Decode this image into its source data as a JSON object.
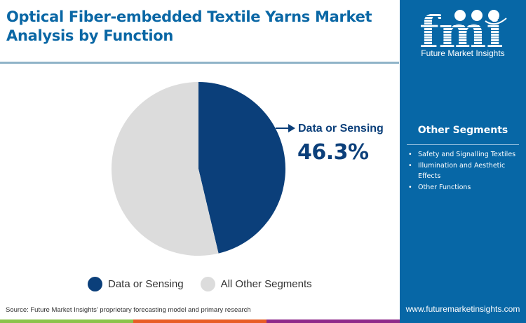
{
  "header": {
    "title": "Optical Fiber-embedded Textile Yarns Market Analysis by Function"
  },
  "callout": {
    "label": "Data or Sensing",
    "value": "46.3%"
  },
  "legend": [
    {
      "label": "Data or Sensing",
      "color": "#0b3f7a"
    },
    {
      "label": "All Other Segments",
      "color": "#dcdcdc"
    }
  ],
  "footer": {
    "source": "Source: Future Market Insights’ proprietary forecasting model and primary research",
    "bar_colors": [
      "#8bc34a",
      "#e85d26",
      "#8e2a8a"
    ]
  },
  "side_panel": {
    "logo_text": "fmi",
    "logo_subtitle": "Future Market Insights",
    "other_segments_title": "Other Segments",
    "other_segments": [
      "Safety and Signalling Textiles",
      "Illumination and Aesthetic Effects",
      "Other Functions"
    ],
    "website": "www.futuremarketinsights.com",
    "background": "#0767a6"
  },
  "chart_data": {
    "type": "pie",
    "title": "Optical Fiber-embedded Textile Yarns Market Analysis by Function",
    "categories": [
      "Data or Sensing",
      "All Other Segments"
    ],
    "values": [
      46.3,
      53.7
    ],
    "colors": [
      "#0b3f7a",
      "#dcdcdc"
    ],
    "annotations": [
      {
        "label": "Data or Sensing",
        "value": "46.3%"
      }
    ],
    "legend_position": "bottom",
    "start_angle": "12 o'clock, clockwise"
  }
}
